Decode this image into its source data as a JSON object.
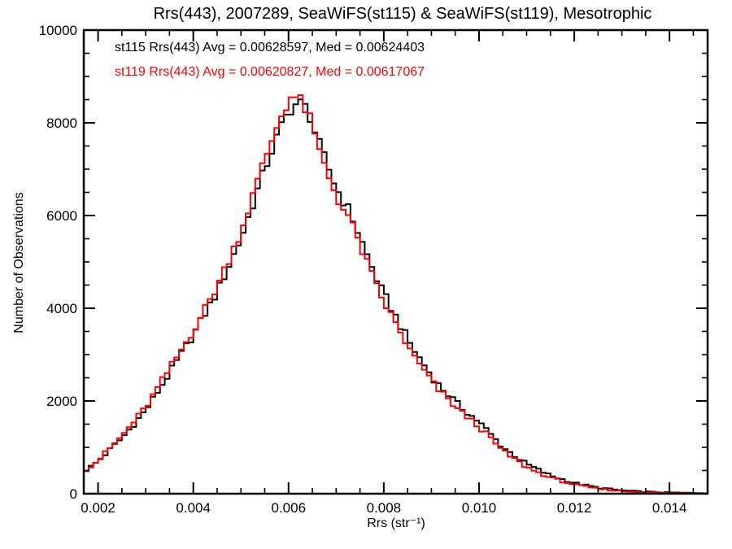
{
  "title": "Rrs(443), 2007289, SeaWiFS(st115) & SeaWiFS(st119), Mesotrophic",
  "legend": {
    "items": [
      {
        "label": "st115 Rrs(443) Avg = 0.00628597, Med = 0.00624403",
        "color": "#000000"
      },
      {
        "label": "st119 Rrs(443) Avg = 0.00620827, Med = 0.00617067",
        "color": "#ff0000"
      }
    ]
  },
  "chart_data": {
    "type": "histogram-step-line",
    "title": "Rrs(443), 2007289, SeaWiFS(st115) & SeaWiFS(st119), Mesotrophic",
    "xlabel": "Rrs (str⁻¹)",
    "ylabel": "Number of Observations",
    "xlim": [
      0.0017,
      0.0148
    ],
    "ylim": [
      0,
      10000
    ],
    "bin_width": 0.0001,
    "grid": false,
    "legend_position": "top-left-inside",
    "xticks": {
      "values": [
        0.002,
        0.004,
        0.006,
        0.008,
        0.01,
        0.012,
        0.014
      ],
      "labels": [
        "0.002",
        "0.004",
        "0.006",
        "0.008",
        "0.010",
        "0.012",
        "0.014"
      ],
      "minor_step": 0.0005
    },
    "yticks": {
      "values": [
        0,
        2000,
        4000,
        6000,
        8000,
        10000
      ],
      "labels": [
        "0",
        "2000",
        "4000",
        "6000",
        "8000",
        "10000"
      ],
      "minor_step": 500
    },
    "series": [
      {
        "name": "st115",
        "color": "#000000",
        "avg": 0.00628597,
        "med": 0.00624403,
        "points": [
          [
            0.0017,
            470
          ],
          [
            0.002,
            700
          ],
          [
            0.0025,
            1200
          ],
          [
            0.003,
            1800
          ],
          [
            0.0035,
            2600
          ],
          [
            0.004,
            3430
          ],
          [
            0.0045,
            4350
          ],
          [
            0.005,
            5500
          ],
          [
            0.0055,
            7000
          ],
          [
            0.0058,
            7800
          ],
          [
            0.006,
            8250
          ],
          [
            0.0062,
            8450
          ],
          [
            0.0064,
            8300
          ],
          [
            0.0066,
            7650
          ],
          [
            0.007,
            6600
          ],
          [
            0.0073,
            6050
          ],
          [
            0.0079,
            4500
          ],
          [
            0.0086,
            3150
          ],
          [
            0.0091,
            2400
          ],
          [
            0.0096,
            1880
          ],
          [
            0.01,
            1550
          ],
          [
            0.0105,
            1000
          ],
          [
            0.011,
            640
          ],
          [
            0.0115,
            390
          ],
          [
            0.012,
            230
          ],
          [
            0.0125,
            130
          ],
          [
            0.013,
            70
          ],
          [
            0.0135,
            40
          ],
          [
            0.014,
            25
          ],
          [
            0.0145,
            15
          ],
          [
            0.0148,
            12
          ]
        ]
      },
      {
        "name": "st119",
        "color": "#ff0000",
        "avg": 0.00620827,
        "med": 0.00617067,
        "points": [
          [
            0.0017,
            480
          ],
          [
            0.002,
            720
          ],
          [
            0.0025,
            1240
          ],
          [
            0.003,
            1860
          ],
          [
            0.0035,
            2690
          ],
          [
            0.004,
            3520
          ],
          [
            0.0045,
            4470
          ],
          [
            0.005,
            5660
          ],
          [
            0.0055,
            7200
          ],
          [
            0.0058,
            8050
          ],
          [
            0.006,
            8500
          ],
          [
            0.0061,
            8600
          ],
          [
            0.0063,
            8420
          ],
          [
            0.0065,
            7950
          ],
          [
            0.0066,
            7500
          ],
          [
            0.007,
            6430
          ],
          [
            0.0073,
            5880
          ],
          [
            0.0079,
            4330
          ],
          [
            0.0086,
            3000
          ],
          [
            0.0091,
            2290
          ],
          [
            0.0096,
            1780
          ],
          [
            0.01,
            1450
          ],
          [
            0.0105,
            920
          ],
          [
            0.011,
            570
          ],
          [
            0.0115,
            340
          ],
          [
            0.012,
            195
          ],
          [
            0.0125,
            105
          ],
          [
            0.013,
            55
          ],
          [
            0.0135,
            28
          ],
          [
            0.014,
            16
          ],
          [
            0.0145,
            9
          ],
          [
            0.0148,
            7
          ]
        ]
      }
    ]
  }
}
